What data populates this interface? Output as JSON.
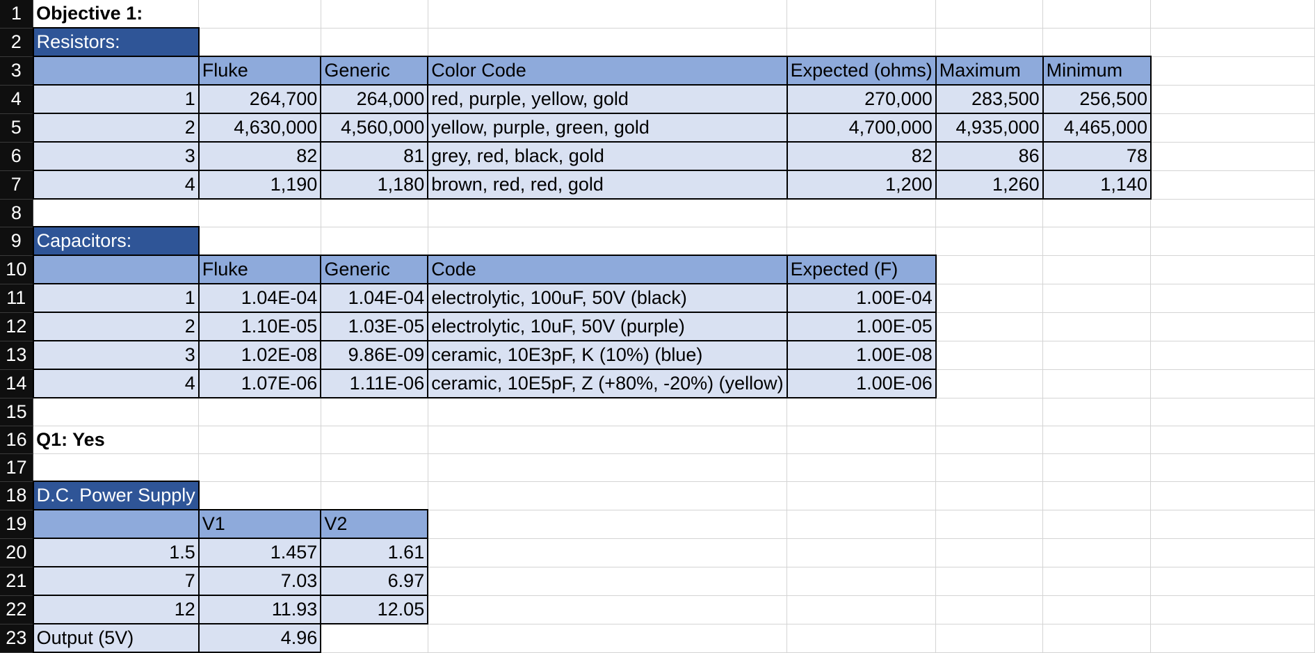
{
  "cells": {
    "r1": {
      "a": "Objective 1:"
    },
    "r2": {
      "a": "Resistors:"
    },
    "r3": {
      "b": "Fluke",
      "c": "Generic",
      "d": "Color Code",
      "e": "Expected (ohms)",
      "f": "Maximum",
      "g": "Minimum"
    },
    "r4": {
      "a": "1",
      "b": "264,700",
      "c": "264,000",
      "d": "red, purple, yellow, gold",
      "e": "270,000",
      "f": "283,500",
      "g": "256,500"
    },
    "r5": {
      "a": "2",
      "b": "4,630,000",
      "c": "4,560,000",
      "d": "yellow, purple, green, gold",
      "e": "4,700,000",
      "f": "4,935,000",
      "g": "4,465,000"
    },
    "r6": {
      "a": "3",
      "b": "82",
      "c": "81",
      "d": "grey, red, black, gold",
      "e": "82",
      "f": "86",
      "g": "78"
    },
    "r7": {
      "a": "4",
      "b": "1,190",
      "c": "1,180",
      "d": "brown, red, red, gold",
      "e": "1,200",
      "f": "1,260",
      "g": "1,140"
    },
    "r9": {
      "a": "Capacitors:"
    },
    "r10": {
      "b": "Fluke",
      "c": "Generic",
      "d": "Code",
      "e": "Expected (F)"
    },
    "r11": {
      "a": "1",
      "b": "1.04E-04",
      "c": "1.04E-04",
      "d": "electrolytic, 100uF, 50V (black)",
      "e": "1.00E-04"
    },
    "r12": {
      "a": "2",
      "b": "1.10E-05",
      "c": "1.03E-05",
      "d": "electrolytic, 10uF, 50V (purple)",
      "e": "1.00E-05"
    },
    "r13": {
      "a": "3",
      "b": "1.02E-08",
      "c": "9.86E-09",
      "d": "ceramic, 10E3pF, K (10%) (blue)",
      "e": "1.00E-08"
    },
    "r14": {
      "a": "4",
      "b": "1.07E-06",
      "c": "1.11E-06",
      "d": "ceramic, 10E5pF, Z (+80%, -20%) (yellow)",
      "e": "1.00E-06"
    },
    "r16": {
      "a": "Q1: Yes"
    },
    "r18": {
      "a": "D.C. Power Supply"
    },
    "r19": {
      "b": "V1",
      "c": "V2"
    },
    "r20": {
      "a": "1.5",
      "b": "1.457",
      "c": "1.61"
    },
    "r21": {
      "a": "7",
      "b": "7.03",
      "c": "6.97"
    },
    "r22": {
      "a": "12",
      "b": "11.93",
      "c": "12.05"
    },
    "r23": {
      "a": "Output (5V)",
      "b": "4.96"
    }
  },
  "colors": {
    "title_fill": "#2f5597",
    "header_fill": "#8eaadb",
    "data_fill": "#d9e1f2",
    "row_header_fill": "#0f0f0f"
  }
}
